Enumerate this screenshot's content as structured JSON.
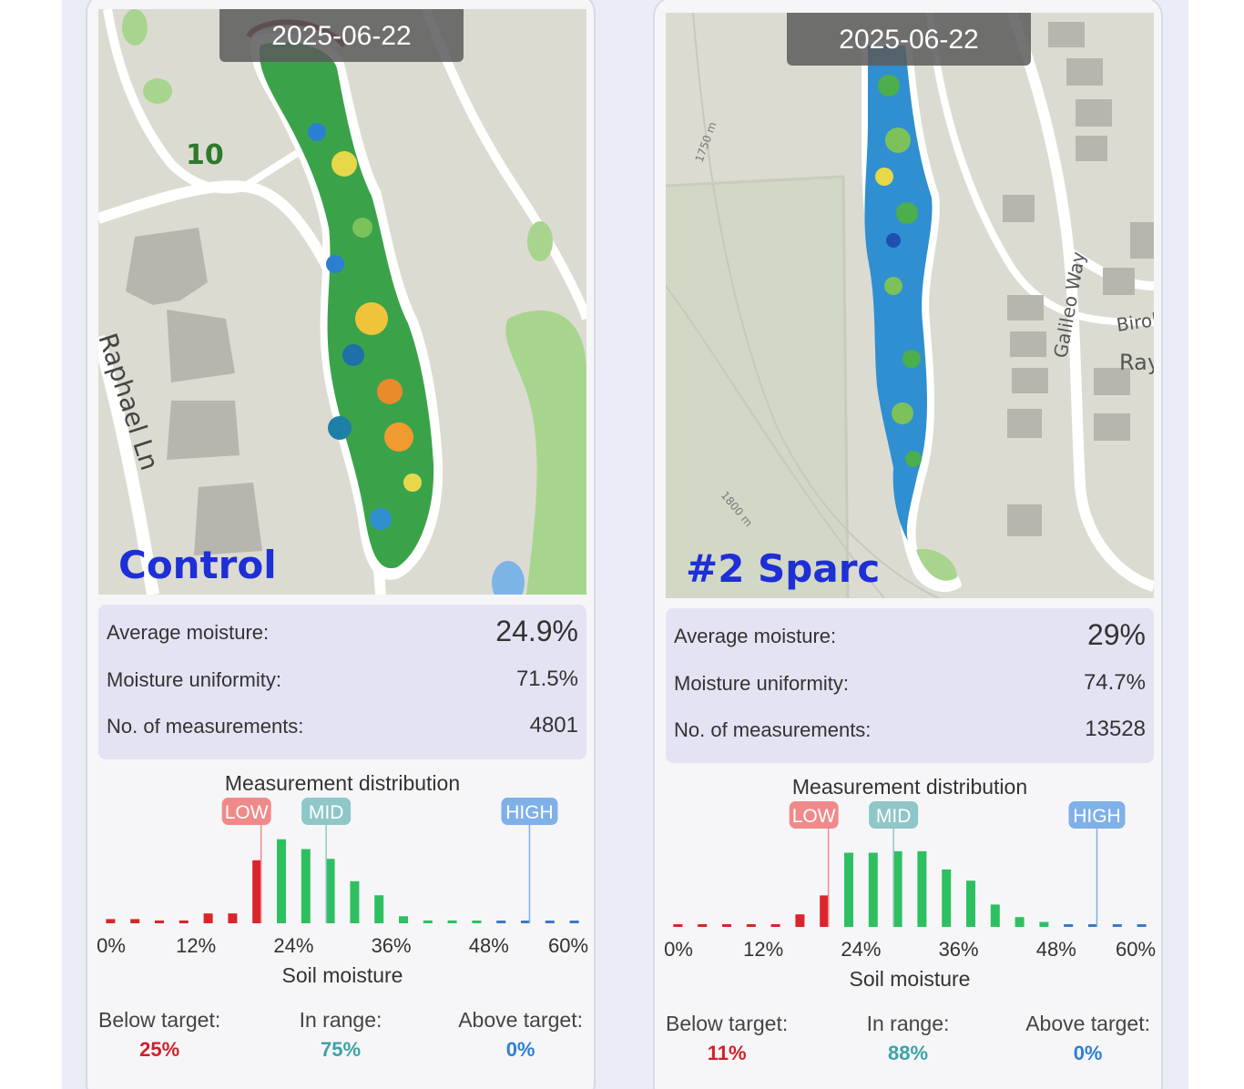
{
  "panels": [
    {
      "date": "2025-06-22",
      "label": "Control",
      "stats": {
        "avg_label": "Average moisture:",
        "avg_value": "24.9%",
        "uni_label": "Moisture uniformity:",
        "uni_value": "71.5%",
        "num_label": "No. of measurements:",
        "num_value": "4801"
      },
      "dist_title": "Measurement distribution",
      "markers": {
        "low": "LOW",
        "mid": "MID",
        "high": "HIGH"
      },
      "axis_ticks": [
        "0%",
        "12%",
        "24%",
        "36%",
        "48%",
        "60%"
      ],
      "axis_title": "Soil moisture",
      "summary": {
        "below_label": "Below target:",
        "below_value": "25%",
        "in_label": "In range:",
        "in_value": "75%",
        "above_label": "Above target:",
        "above_value": "0%"
      },
      "map_labels": {
        "hole": "10",
        "road": "Raphael Ln"
      }
    },
    {
      "date": "2025-06-22",
      "label": "#2 Sparc",
      "stats": {
        "avg_label": "Average moisture:",
        "avg_value": "29%",
        "uni_label": "Moisture uniformity:",
        "uni_value": "74.7%",
        "num_label": "No. of measurements:",
        "num_value": "13528"
      },
      "dist_title": "Measurement distribution",
      "markers": {
        "low": "LOW",
        "mid": "MID",
        "high": "HIGH"
      },
      "axis_ticks": [
        "0%",
        "12%",
        "24%",
        "36%",
        "48%",
        "60%"
      ],
      "axis_title": "Soil moisture",
      "summary": {
        "below_label": "Below target:",
        "below_value": "11%",
        "in_label": "In range:",
        "in_value": "88%",
        "above_label": "Above target:",
        "above_value": "0%"
      },
      "map_labels": {
        "road": "Galileo Way",
        "road2": "Birol",
        "road3": "Ray",
        "contour1": "1750 m",
        "contour2": "1800 m"
      }
    }
  ],
  "colors": {
    "below": "#d9252b",
    "in_range": "#2ec060",
    "above": "#3a78c4",
    "low_marker": "#f08a8a",
    "mid_marker": "#8fc7c8",
    "high_marker": "#7fb0e8",
    "label_blue": "#1e2fd6",
    "pct_below": "#d0212a",
    "pct_in": "#3ba3a6",
    "pct_above": "#2f7fd4"
  },
  "histograms": [
    {
      "bins_pct": [
        0,
        3,
        6,
        9,
        12,
        15,
        18,
        21,
        24,
        27,
        30,
        33,
        36,
        39,
        42,
        45,
        48,
        51,
        54,
        57,
        60
      ],
      "values": [
        0.6,
        0.6,
        0.4,
        0.4,
        1.4,
        1.4,
        9.0,
        12.0,
        10.6,
        9.2,
        6.0,
        4.0,
        1.0,
        0.4,
        0.4,
        0.2,
        0.2,
        0.2,
        0.2,
        0.2
      ],
      "categories": [
        "below",
        "below",
        "below",
        "below",
        "below",
        "below",
        "below",
        "in",
        "in",
        "in",
        "in",
        "in",
        "in",
        "in",
        "in",
        "in",
        "above",
        "above",
        "above",
        "above"
      ],
      "low_pct": 20,
      "mid_pct": 28,
      "high_pct": 53,
      "ymax": 13
    },
    {
      "bins_pct": [
        0,
        3,
        6,
        9,
        12,
        15,
        18,
        21,
        24,
        27,
        30,
        33,
        36,
        39,
        42,
        45,
        48,
        51,
        54,
        57,
        60
      ],
      "values": [
        0.3,
        0.3,
        0.2,
        0.2,
        0.3,
        1.8,
        4.5,
        10.6,
        10.6,
        10.8,
        10.8,
        8.2,
        6.6,
        3.2,
        1.4,
        0.7,
        0.2,
        0.2,
        0.2,
        0.2
      ],
      "categories": [
        "below",
        "below",
        "below",
        "below",
        "below",
        "below",
        "below",
        "in",
        "in",
        "in",
        "in",
        "in",
        "in",
        "in",
        "in",
        "in",
        "above",
        "above",
        "above",
        "above"
      ],
      "low_pct": 20,
      "mid_pct": 28,
      "high_pct": 53,
      "ymax": 13
    }
  ]
}
